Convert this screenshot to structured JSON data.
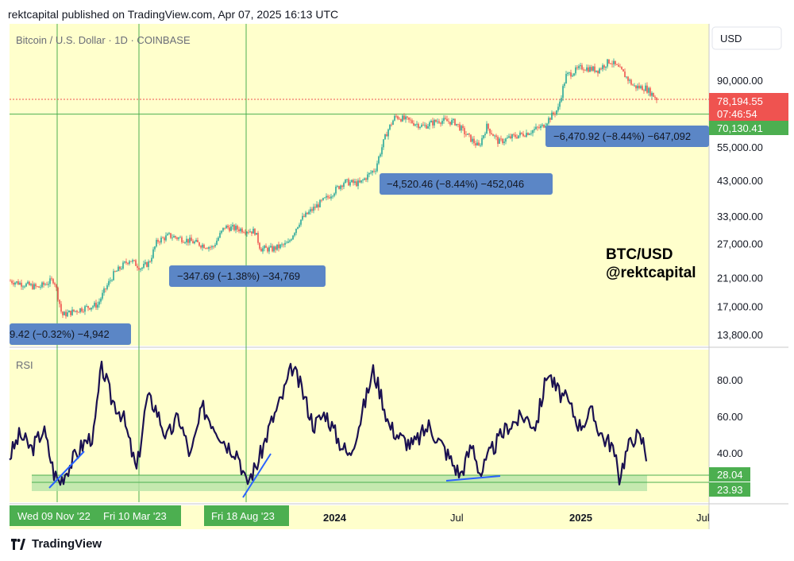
{
  "header": {
    "published": "rektcapital published on TradingView.com, Apr 07, 2025 16:13 UTC"
  },
  "symbol": "Bitcoin / U.S. Dollar · 1D · COINBASE",
  "currency_button": "USD",
  "watermark": {
    "line1": "BTC/USD",
    "line2": "@rektcapital"
  },
  "rsi_label": "RSI",
  "footer": {
    "brand": "TradingView"
  },
  "colors": {
    "background": "#ffffcc",
    "up": "#26a69a",
    "down": "#ef5350",
    "rsi_line": "#1a1050",
    "trend_line": "#2962ff",
    "green_zone": "#b6e3a7",
    "vertical_line": "#4caf50",
    "measure_box": "#5b86c6",
    "current_price_box": "#ef5350",
    "green_label": "#4caf50"
  },
  "chart_data": {
    "type": "candlestick",
    "price_scale": "log",
    "y_ticks": [
      "90,000.00",
      "55,000.00",
      "43,000.00",
      "33,000.00",
      "27,000.00",
      "21,000.00",
      "17,000.00",
      "13,800.00"
    ],
    "y_tick_values": [
      90000,
      55000,
      43000,
      33000,
      27000,
      21000,
      17000,
      13800
    ],
    "x_ticks": [
      "2024",
      "Jul",
      "2025",
      "Jul"
    ],
    "current_price": {
      "value": "78,194.55",
      "countdown": "07:46:54"
    },
    "horizontal_level": {
      "value": "70,130.41"
    },
    "date_labels": [
      "Wed 09 Nov '22",
      "Fri 10 Mar '23",
      "Fri 18 Aug '23"
    ],
    "measurements": [
      {
        "text": "9.42 (−0.32%) −4,942"
      },
      {
        "text": "−347.69 (−1.38%) −34,769"
      },
      {
        "text": "−4,520.46 (−8.44%) −452,046"
      },
      {
        "text": "−6,470.92 (−8.44%) −647,092"
      }
    ],
    "price_keypoints": [
      [
        0,
        20500
      ],
      [
        35,
        19500
      ],
      [
        55,
        20700
      ],
      [
        65,
        15900
      ],
      [
        90,
        16700
      ],
      [
        110,
        17200
      ],
      [
        130,
        21500
      ],
      [
        150,
        24000
      ],
      [
        165,
        22500
      ],
      [
        175,
        23500
      ],
      [
        185,
        27500
      ],
      [
        200,
        28600
      ],
      [
        220,
        27800
      ],
      [
        240,
        26800
      ],
      [
        255,
        26200
      ],
      [
        270,
        30500
      ],
      [
        290,
        30000
      ],
      [
        308,
        29500
      ],
      [
        315,
        26000
      ],
      [
        330,
        25900
      ],
      [
        350,
        27000
      ],
      [
        365,
        32000
      ],
      [
        385,
        35500
      ],
      [
        400,
        38000
      ],
      [
        420,
        42500
      ],
      [
        440,
        42000
      ],
      [
        460,
        47000
      ],
      [
        475,
        62000
      ],
      [
        485,
        69000
      ],
      [
        500,
        67000
      ],
      [
        520,
        64000
      ],
      [
        540,
        67000
      ],
      [
        560,
        66000
      ],
      [
        575,
        60000
      ],
      [
        590,
        55000
      ],
      [
        600,
        64000
      ],
      [
        615,
        57000
      ],
      [
        630,
        59000
      ],
      [
        650,
        61000
      ],
      [
        670,
        64000
      ],
      [
        690,
        73000
      ],
      [
        700,
        93000
      ],
      [
        720,
        99000
      ],
      [
        740,
        97000
      ],
      [
        755,
        104000
      ],
      [
        770,
        96000
      ],
      [
        785,
        86000
      ],
      [
        800,
        85000
      ],
      [
        815,
        78200
      ]
    ],
    "rsi": {
      "label": "RSI",
      "y_ticks": [
        "80.00",
        "60.00",
        "40.00"
      ],
      "y_tick_values": [
        80,
        60,
        40
      ],
      "levels": [
        "28.04",
        "23.93"
      ],
      "level_values": [
        28.04,
        23.93
      ],
      "keypoints": [
        [
          12,
          38
        ],
        [
          25,
          50
        ],
        [
          40,
          42
        ],
        [
          55,
          53
        ],
        [
          68,
          29
        ],
        [
          75,
          24
        ],
        [
          90,
          35
        ],
        [
          105,
          45
        ],
        [
          118,
          50
        ],
        [
          128,
          88
        ],
        [
          140,
          70
        ],
        [
          155,
          60
        ],
        [
          172,
          30
        ],
        [
          185,
          70
        ],
        [
          195,
          66
        ],
        [
          210,
          48
        ],
        [
          225,
          60
        ],
        [
          240,
          38
        ],
        [
          255,
          65
        ],
        [
          270,
          55
        ],
        [
          285,
          45
        ],
        [
          300,
          40
        ],
        [
          310,
          23
        ],
        [
          325,
          35
        ],
        [
          340,
          55
        ],
        [
          355,
          70
        ],
        [
          368,
          87
        ],
        [
          380,
          75
        ],
        [
          395,
          55
        ],
        [
          410,
          62
        ],
        [
          425,
          48
        ],
        [
          440,
          38
        ],
        [
          455,
          60
        ],
        [
          470,
          85
        ],
        [
          480,
          72
        ],
        [
          490,
          55
        ],
        [
          505,
          48
        ],
        [
          520,
          44
        ],
        [
          540,
          55
        ],
        [
          560,
          42
        ],
        [
          572,
          33
        ],
        [
          580,
          28
        ],
        [
          595,
          45
        ],
        [
          605,
          28
        ],
        [
          620,
          42
        ],
        [
          640,
          55
        ],
        [
          660,
          60
        ],
        [
          675,
          55
        ],
        [
          690,
          85
        ],
        [
          700,
          75
        ],
        [
          715,
          68
        ],
        [
          730,
          55
        ],
        [
          745,
          62
        ],
        [
          760,
          48
        ],
        [
          770,
          45
        ],
        [
          780,
          27
        ],
        [
          790,
          42
        ],
        [
          800,
          50
        ],
        [
          810,
          46
        ],
        [
          815,
          37
        ]
      ]
    }
  }
}
